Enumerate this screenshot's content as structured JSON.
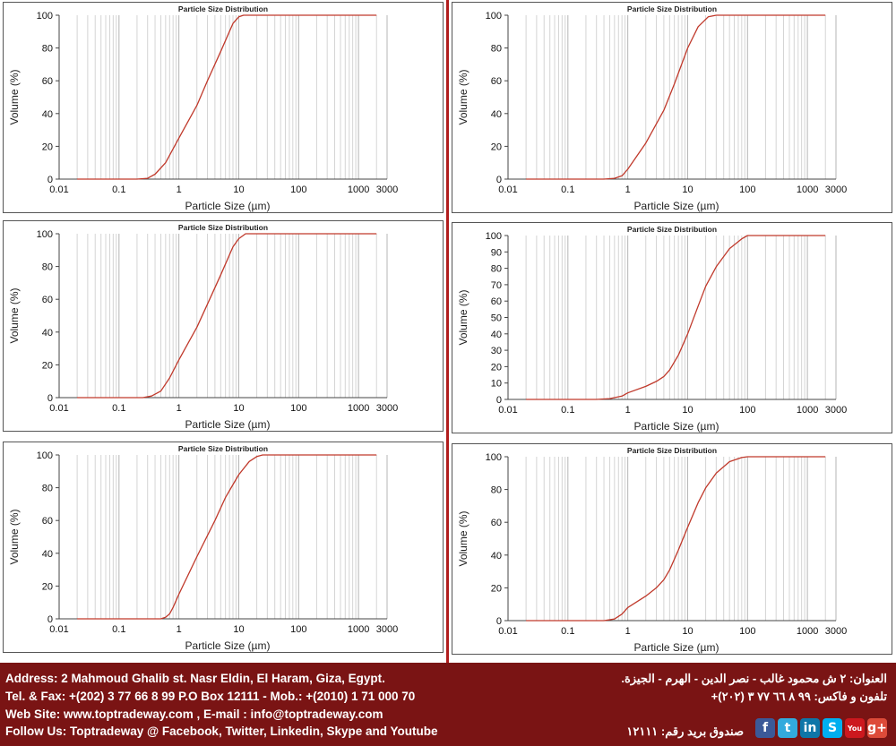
{
  "chart_data": [
    {
      "type": "line",
      "title": "Particle Size Distribution",
      "xlabel": "Particle Size (µm)",
      "ylabel": "Volume (%)",
      "xscale": "log",
      "xlim": [
        0.01,
        3000
      ],
      "ylim": [
        0,
        100
      ],
      "xticks": [
        "0.01",
        "0.1",
        "1",
        "10",
        "100",
        "1000",
        "3000"
      ],
      "yticks": [
        "0",
        "20",
        "40",
        "60",
        "80",
        "100"
      ],
      "grid": true,
      "line_color": "#c0392b",
      "series": [
        {
          "x": [
            0.02,
            0.2,
            0.3,
            0.4,
            0.6,
            1,
            2,
            3,
            5,
            8,
            10,
            12,
            20,
            100,
            1000,
            2000
          ],
          "y": [
            0,
            0,
            0.5,
            3,
            10,
            25,
            45,
            60,
            78,
            95,
            99,
            100,
            100,
            100,
            100,
            100
          ]
        }
      ]
    },
    {
      "type": "line",
      "title": "Particle Size Distribution",
      "xlabel": "Particle Size (µm)",
      "ylabel": "Volume (%)",
      "xscale": "log",
      "xlim": [
        0.01,
        3000
      ],
      "ylim": [
        0,
        100
      ],
      "xticks": [
        "0.01",
        "0.1",
        "1",
        "10",
        "100",
        "1000",
        "3000"
      ],
      "yticks": [
        "0",
        "20",
        "40",
        "60",
        "80",
        "100"
      ],
      "grid": true,
      "line_color": "#c0392b",
      "series": [
        {
          "x": [
            0.02,
            0.4,
            0.6,
            0.8,
            1,
            2,
            4,
            6,
            10,
            15,
            22,
            30,
            100,
            1000,
            2000
          ],
          "y": [
            0,
            0,
            0.5,
            2,
            6,
            22,
            42,
            58,
            80,
            93,
            99,
            100,
            100,
            100,
            100
          ]
        }
      ]
    },
    {
      "type": "line",
      "title": "Particle Size Distribution",
      "xlabel": "Particle Size (µm)",
      "ylabel": "Volume (%)",
      "xscale": "log",
      "xlim": [
        0.01,
        3000
      ],
      "ylim": [
        0,
        100
      ],
      "xticks": [
        "0.01",
        "0.1",
        "1",
        "10",
        "100",
        "1000",
        "3000"
      ],
      "yticks": [
        "0",
        "20",
        "40",
        "60",
        "80",
        "100"
      ],
      "grid": true,
      "line_color": "#c0392b",
      "series": [
        {
          "x": [
            0.02,
            0.25,
            0.35,
            0.5,
            0.7,
            1,
            2,
            3,
            5,
            8,
            10,
            13,
            20,
            100,
            1000,
            2000
          ],
          "y": [
            0,
            0,
            1,
            4,
            12,
            23,
            43,
            57,
            75,
            92,
            97,
            100,
            100,
            100,
            100,
            100
          ]
        }
      ]
    },
    {
      "type": "line",
      "title": "Particle Size Distribution",
      "xlabel": "Particle Size (µm)",
      "ylabel": "Volume (%)",
      "xscale": "log",
      "xlim": [
        0.01,
        3000
      ],
      "ylim": [
        0,
        100
      ],
      "xticks": [
        "0.01",
        "0.1",
        "1",
        "10",
        "100",
        "1000",
        "3000"
      ],
      "yticks": [
        "0",
        "10",
        "20",
        "30",
        "40",
        "50",
        "60",
        "70",
        "80",
        "90",
        "100"
      ],
      "grid": true,
      "line_color": "#c0392b",
      "series": [
        {
          "x": [
            0.02,
            0.3,
            0.5,
            0.8,
            1,
            2,
            3,
            4,
            5,
            7,
            10,
            15,
            20,
            30,
            50,
            80,
            100,
            150,
            1000,
            2000
          ],
          "y": [
            0,
            0,
            0.5,
            2,
            4,
            8,
            11,
            14,
            18,
            27,
            40,
            57,
            69,
            81,
            92,
            98,
            100,
            100,
            100,
            100
          ]
        }
      ]
    },
    {
      "type": "line",
      "title": "Particle Size Distribution",
      "xlabel": "Particle Size (µm)",
      "ylabel": "Volume (%)",
      "xscale": "log",
      "xlim": [
        0.01,
        3000
      ],
      "ylim": [
        0,
        100
      ],
      "xticks": [
        "0.01",
        "0.1",
        "1",
        "10",
        "100",
        "1000",
        "3000"
      ],
      "yticks": [
        "0",
        "20",
        "40",
        "60",
        "80",
        "100"
      ],
      "grid": true,
      "line_color": "#c0392b",
      "series": [
        {
          "x": [
            0.02,
            0.5,
            0.6,
            0.7,
            0.8,
            1,
            2,
            4,
            6,
            10,
            15,
            20,
            25,
            100,
            1000,
            2000
          ],
          "y": [
            0,
            0,
            1,
            3,
            7,
            15,
            38,
            60,
            74,
            88,
            96,
            99,
            100,
            100,
            100,
            100
          ]
        }
      ]
    },
    {
      "type": "line",
      "title": "Particle Size Distribution",
      "xlabel": "Particle Size (µm)",
      "ylabel": "Volume (%)",
      "xscale": "log",
      "xlim": [
        0.01,
        3000
      ],
      "ylim": [
        0,
        100
      ],
      "xticks": [
        "0.01",
        "0.1",
        "1",
        "10",
        "100",
        "1000",
        "3000"
      ],
      "yticks": [
        "0",
        "20",
        "40",
        "60",
        "80",
        "100"
      ],
      "grid": true,
      "line_color": "#c0392b",
      "series": [
        {
          "x": [
            0.02,
            0.4,
            0.6,
            0.8,
            1,
            2,
            3,
            4,
            5,
            7,
            10,
            15,
            20,
            30,
            50,
            80,
            100,
            1000,
            2000
          ],
          "y": [
            0,
            0,
            1,
            4,
            8,
            15,
            20,
            25,
            31,
            43,
            57,
            72,
            81,
            90,
            97,
            99.5,
            100,
            100,
            100
          ]
        }
      ]
    }
  ],
  "footer": {
    "address": "Address: 2 Mahmoud Ghalib st. Nasr Eldin, El Haram, Giza, Egypt.",
    "tel": "Tel. & Fax: +(202) 3 77 66 8 99  P.O Box 12111 - Mob.:  +(2010) 1 71 000 70",
    "web": "Web Site: www.toptradeway.com , E-mail : info@toptradeway.com",
    "follow": "Follow Us: Toptradeway @ Facebook, Twitter, Linkedin, Skype and Youtube",
    "arabic_address": "العنوان: ٢ ش محمود غالب - نصر الدين - الهرم - الجيزة.",
    "arabic_phone": "تلفون و فاكس: ٩٩ ٨ ٦٦ ٧٧ ٣ (٢٠٢)+",
    "arabic_postal": "صندوق بريد رقم: ١٢١١١",
    "social": [
      {
        "name": "facebook-icon",
        "glyph": "f",
        "color": "#3b5998"
      },
      {
        "name": "twitter-icon",
        "glyph": "t",
        "color": "#33aadd"
      },
      {
        "name": "linkedin-icon",
        "glyph": "in",
        "color": "#0e76a8"
      },
      {
        "name": "skype-icon",
        "glyph": "S",
        "color": "#00aff0"
      },
      {
        "name": "youtube-icon",
        "glyph": "You",
        "color": "#cc181e"
      },
      {
        "name": "google-plus-icon",
        "glyph": "g+",
        "color": "#dd4b39"
      }
    ]
  }
}
